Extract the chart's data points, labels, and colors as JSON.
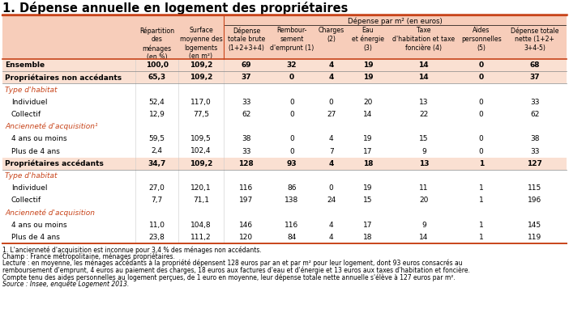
{
  "title": "1. Dépense annuelle en logement des propriétaires",
  "title_fontsize": 10.5,
  "background_color": "#FFFFFF",
  "header_bg": "#F7CDBA",
  "subheader_bg": "#FAE0D2",
  "orange_red": "#C8441A",
  "col_headers": [
    "Répartition\ndes\nménages\n(en %)",
    "Surface\nmoyenne des\nlogements\n(en m²)",
    "Dépense\ntotale brute\n(1+2+3+4)",
    "Rembour-\nsement\nd'emprunt (1)",
    "Charges\n(2)",
    "Eau\net énergie\n(3)",
    "Taxe\nd'habitation et taxe\nfoncière (4)",
    "Aides\npersonnelles\n(5)",
    "Dépense totale\nnette (1+2+\n3+4-5)"
  ],
  "rows": [
    {
      "label": "Ensemble",
      "bold": true,
      "red": false,
      "indent": 0,
      "values": [
        "100,0",
        "109,2",
        "69",
        "32",
        "4",
        "19",
        "14",
        "0",
        "68"
      ]
    },
    {
      "label": "Propriétaires non accédants",
      "bold": true,
      "red": false,
      "indent": 0,
      "values": [
        "65,3",
        "109,2",
        "37",
        "0",
        "4",
        "19",
        "14",
        "0",
        "37"
      ]
    },
    {
      "label": "Type d'habitat",
      "bold": true,
      "red": true,
      "indent": 0,
      "values": [
        "",
        "",
        "",
        "",
        "",
        "",
        "",
        "",
        ""
      ]
    },
    {
      "label": "Individuel",
      "bold": false,
      "red": false,
      "indent": 1,
      "values": [
        "52,4",
        "117,0",
        "33",
        "0",
        "0",
        "20",
        "13",
        "0",
        "33"
      ]
    },
    {
      "label": "Collectif",
      "bold": false,
      "red": false,
      "indent": 1,
      "values": [
        "12,9",
        "77,5",
        "62",
        "0",
        "27",
        "14",
        "22",
        "0",
        "62"
      ]
    },
    {
      "label": "Ancienneté d'acquisition¹",
      "bold": true,
      "red": true,
      "indent": 0,
      "values": [
        "",
        "",
        "",
        "",
        "",
        "",
        "",
        "",
        ""
      ]
    },
    {
      "label": "4 ans ou moins",
      "bold": false,
      "red": false,
      "indent": 1,
      "values": [
        "59,5",
        "109,5",
        "38",
        "0",
        "4",
        "19",
        "15",
        "0",
        "38"
      ]
    },
    {
      "label": "Plus de 4 ans",
      "bold": false,
      "red": false,
      "indent": 1,
      "values": [
        "2,4",
        "102,4",
        "33",
        "0",
        "7",
        "17",
        "9",
        "0",
        "33"
      ]
    },
    {
      "label": "Propriétaires accédants",
      "bold": true,
      "red": false,
      "indent": 0,
      "values": [
        "34,7",
        "109,2",
        "128",
        "93",
        "4",
        "18",
        "13",
        "1",
        "127"
      ]
    },
    {
      "label": "Type d'habitat",
      "bold": true,
      "red": true,
      "indent": 0,
      "values": [
        "",
        "",
        "",
        "",
        "",
        "",
        "",
        "",
        ""
      ]
    },
    {
      "label": "Individuel",
      "bold": false,
      "red": false,
      "indent": 1,
      "values": [
        "27,0",
        "120,1",
        "116",
        "86",
        "0",
        "19",
        "11",
        "1",
        "115"
      ]
    },
    {
      "label": "Collectif",
      "bold": false,
      "red": false,
      "indent": 1,
      "values": [
        "7,7",
        "71,1",
        "197",
        "138",
        "24",
        "15",
        "20",
        "1",
        "196"
      ]
    },
    {
      "label": "Ancienneté d'acquisition",
      "bold": true,
      "red": true,
      "indent": 0,
      "values": [
        "",
        "",
        "",
        "",
        "",
        "",
        "",
        "",
        ""
      ]
    },
    {
      "label": "4 ans ou moins",
      "bold": false,
      "red": false,
      "indent": 1,
      "values": [
        "11,0",
        "104,8",
        "146",
        "116",
        "4",
        "17",
        "9",
        "1",
        "145"
      ]
    },
    {
      "label": "Plus de 4 ans",
      "bold": false,
      "red": false,
      "indent": 1,
      "values": [
        "23,8",
        "111,2",
        "120",
        "84",
        "4",
        "18",
        "14",
        "1",
        "119"
      ]
    }
  ],
  "footnotes": [
    "1. L'ancienneté d'acquisition est inconnue pour 3,4 % des ménages non accédants.",
    "Champ : France métropolitaine, ménages propriétaires.",
    "Lecture : en moyenne, les ménages accédants à la propriété dépensent 128 euros par an et par m² pour leur logement, dont 93 euros consacrés au",
    "remboursement d'emprunt, 4 euros au paiement des charges, 18 euros aux factures d'eau et d'énergie et 13 euros aux taxes d'habitation et foncière.",
    "Compte tenu des aides personnelles au logement perçues, de 1 euro en moyenne, leur dépense totale nette annuelle s'élève à 127 euros par m².",
    "Source : Insee, enquête Logement 2013."
  ],
  "footnote_italic_idx": 5
}
